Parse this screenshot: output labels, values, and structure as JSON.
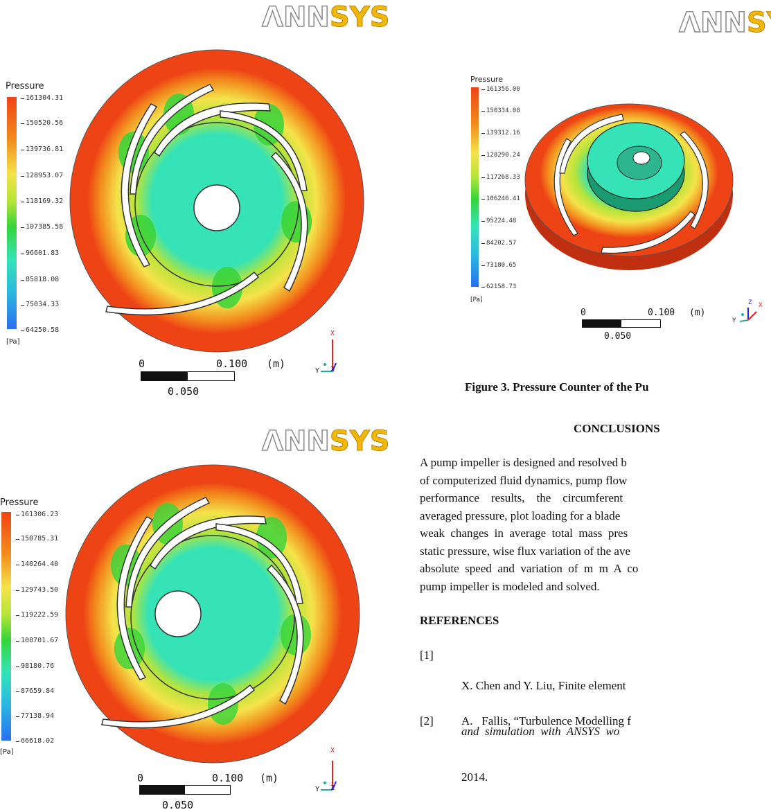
{
  "figure_top": {
    "logo": {
      "a": "ΛNN",
      "b": "SYS"
    },
    "legend_title": "Pressure",
    "unit": "[Pa]",
    "ticks": [
      "161304.31",
      "150520.56",
      "139736.81",
      "128953.07",
      "118169.32",
      "107385.58",
      "96601.83",
      "85818.08",
      "75034.33",
      "64250.58"
    ],
    "scale": {
      "zero": "0",
      "max": "0.100",
      "unit": "(m)",
      "mid": "0.050"
    },
    "axes": {
      "x": "X",
      "y": "Y",
      "z": "Z"
    }
  },
  "figure_bottom": {
    "logo": {
      "a": "ΛNN",
      "b": "SYS"
    },
    "legend_title": "Pressure",
    "unit": "[Pa]",
    "ticks": [
      "161306.23",
      "150785.31",
      "140264.40",
      "129743.50",
      "119222.59",
      "108701.67",
      "98180.76",
      "87659.84",
      "77138.94",
      "66618.02"
    ],
    "scale": {
      "zero": "0",
      "max": "0.100",
      "unit": "(m)",
      "mid": "0.050"
    },
    "axes": {
      "x": "X",
      "y": "Y",
      "z": "Z"
    }
  },
  "figure_right": {
    "logo": {
      "a": "ΛNN",
      "b": "SYS"
    },
    "legend_title": "Pressure",
    "unit": "[Pa]",
    "ticks": [
      "161356.00",
      "150334.08",
      "139312.16",
      "128290.24",
      "117268.33",
      "106246.41",
      "95224.48",
      "84202.57",
      "73180.65",
      "62158.73"
    ],
    "scale": {
      "zero": "0",
      "max": "0.100",
      "unit": "(m)",
      "mid": "0.050"
    },
    "axes": {
      "x": "X",
      "y": "Y",
      "z": "Z"
    }
  },
  "caption": "Figure 3. Pressure Counter of the Pu",
  "conclusions_heading": "CONCLUSIONS",
  "conclusions_lines": [
    "A pump impeller is designed and resolved b",
    "of computerized fluid dynamics, pump flow",
    "performance    results,    the    circumferent",
    "averaged pressure, plot loading for a blade",
    "weak  changes  in  average  total  mass  pres",
    "static pressure, wise flux variation of the ave",
    "absolute  speed  and  variation  of  m  m  A  co",
    "pump impeller is modeled and solved."
  ],
  "references_heading": "REFERENCES",
  "references": [
    {
      "num": "[1]",
      "line1": "X. Chen and Y. Liu, Finite element",
      "line2": "and  simulation  with  ANSYS  wo",
      "line3": "2014."
    },
    {
      "num": "[2]",
      "line1": "A.   Fallis, “Turbulence Modelling f"
    }
  ],
  "colors": {
    "high": "#ee4415",
    "orange": "#f28a1d",
    "yellow": "#f4e34a",
    "yellowgreen": "#b5e43a",
    "green": "#36d43a",
    "cyan": "#35e3b7",
    "blue": "#2a6ff0"
  }
}
